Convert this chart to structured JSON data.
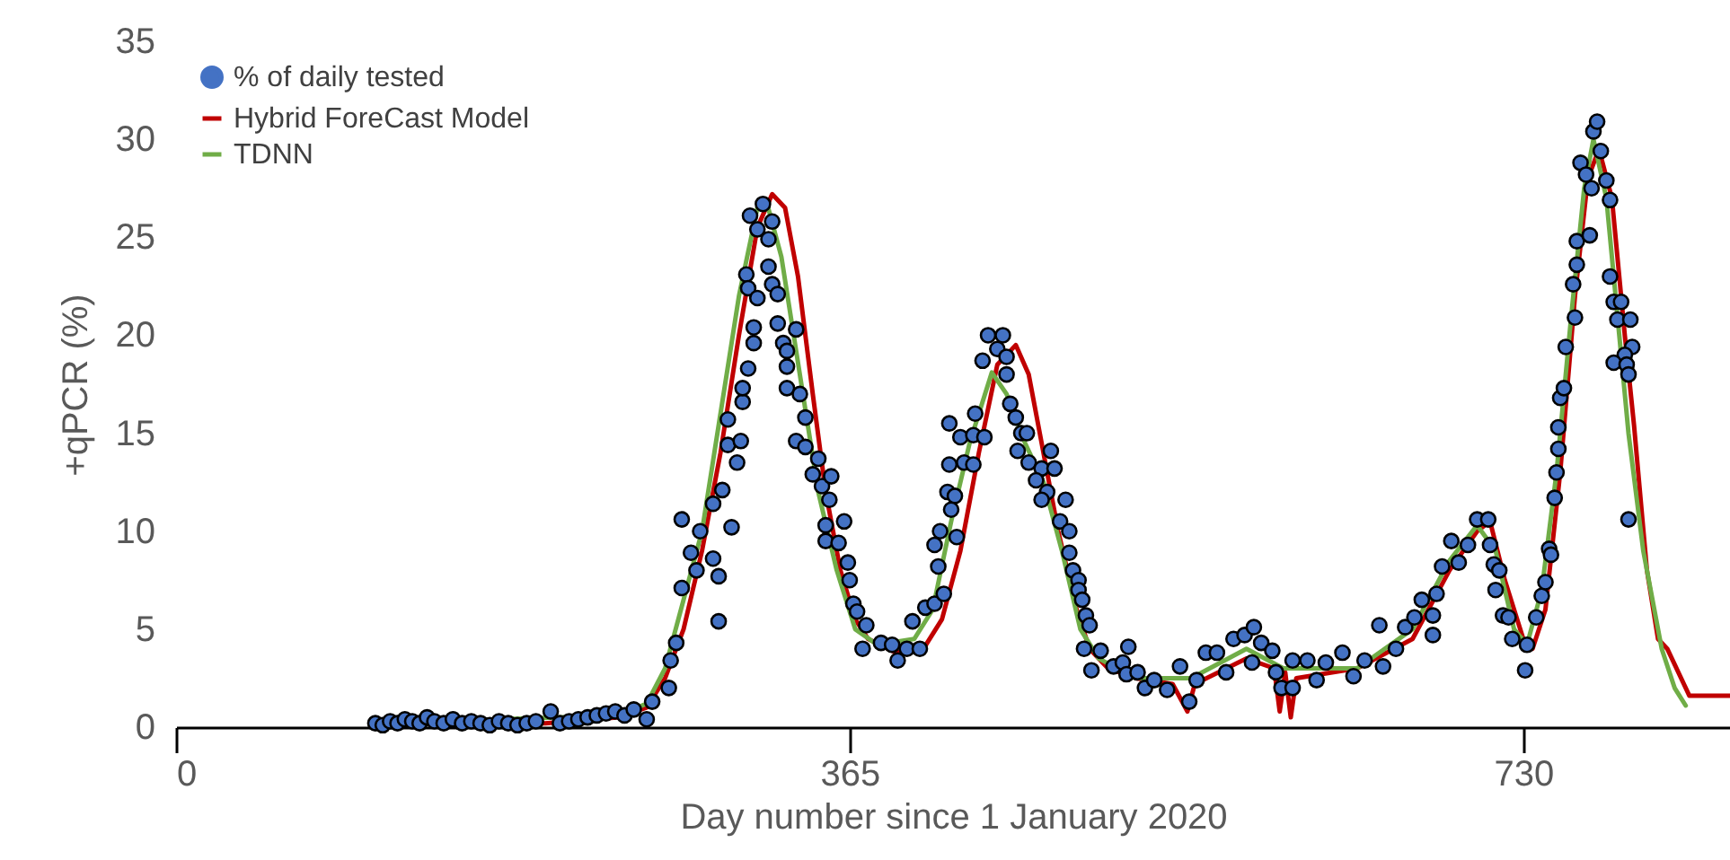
{
  "chart_data": {
    "type": "scatter",
    "xlabel": "Day number since 1 January 2020",
    "ylabel": "+qPCR (%)",
    "xlim": [
      0,
      842
    ],
    "ylim": [
      0,
      35
    ],
    "xticks": [
      0,
      365,
      730
    ],
    "yticks": [
      0,
      5,
      10,
      15,
      20,
      25,
      30,
      35
    ],
    "grid": false,
    "legend": "top left",
    "series": [
      {
        "name": "% of daily tested",
        "marker": "circle",
        "color": "#4472c4",
        "x": [
          108,
          112,
          116,
          120,
          124,
          128,
          132,
          136,
          140,
          145,
          150,
          155,
          160,
          165,
          170,
          175,
          180,
          185,
          190,
          195,
          203,
          208,
          213,
          218,
          223,
          228,
          233,
          238,
          243,
          248,
          255,
          258,
          267,
          268,
          271,
          274,
          274,
          279,
          282,
          284,
          291,
          294,
          294,
          291,
          296,
          301,
          299,
          299,
          304,
          306,
          307,
          307,
          310,
          313,
          313,
          309,
          310,
          315,
          311,
          315,
          318,
          323,
          321,
          321,
          323,
          326,
          326,
          329,
          331,
          331,
          336,
          331,
          338,
          341,
          336,
          341,
          348,
          345,
          350,
          355,
          354,
          352,
          362,
          352,
          359,
          364,
          365,
          367,
          369,
          374,
          372,
          382,
          388,
          391,
          396,
          403,
          399,
          406,
          411,
          416,
          423,
          414,
          411,
          413,
          418,
          422,
          420,
          419,
          419,
          425,
          427,
          432,
          433,
          432,
          438,
          437,
          440,
          445,
          448,
          450,
          450,
          452,
          455,
          458,
          456,
          461,
          462,
          469,
          466,
          474,
          476,
          472,
          469,
          482,
          479,
          484,
          484,
          486,
          489,
          489,
          491,
          493,
          495,
          492,
          496,
          501,
          508,
          513,
          516,
          515,
          521,
          525,
          530,
          537,
          544,
          549,
          553,
          558,
          564,
          569,
          573,
          579,
          584,
          583,
          588,
          594,
          596,
          599,
          605,
          605,
          613,
          618,
          623,
          632,
          638,
          644,
          652,
          654,
          661,
          666,
          671,
          675,
          681,
          681,
          683,
          686,
          691,
          695,
          700,
          705,
          711,
          712,
          714,
          715,
          719,
          717,
          722,
          724,
          732,
          731,
          737,
          740,
          742,
          744,
          745,
          747,
          748,
          749,
          749,
          750,
          752,
          753,
          758,
          757,
          759,
          759,
          766,
          761,
          764,
          767,
          768,
          770,
          772,
          775,
          777,
          777,
          779,
          783,
          781,
          788,
          789,
          785,
          779,
          786,
          787,
          787
        ],
        "values": [
          0.2,
          0.1,
          0.3,
          0.2,
          0.4,
          0.3,
          0.2,
          0.5,
          0.3,
          0.2,
          0.4,
          0.2,
          0.3,
          0.2,
          0.1,
          0.3,
          0.2,
          0.1,
          0.2,
          0.3,
          0.8,
          0.2,
          0.3,
          0.4,
          0.5,
          0.6,
          0.7,
          0.8,
          0.6,
          0.9,
          0.4,
          1.3,
          2.0,
          3.4,
          4.3,
          7.1,
          10.6,
          8.9,
          8.0,
          10.0,
          8.6,
          7.7,
          5.4,
          11.4,
          12.1,
          10.2,
          14.4,
          15.7,
          13.5,
          14.6,
          16.6,
          17.3,
          18.3,
          19.6,
          20.4,
          23.1,
          22.4,
          21.9,
          26.1,
          25.4,
          26.7,
          25.8,
          24.9,
          23.5,
          22.6,
          22.1,
          20.6,
          19.6,
          19.2,
          18.4,
          20.3,
          17.3,
          17.0,
          15.8,
          14.6,
          14.3,
          13.7,
          12.9,
          12.3,
          12.8,
          11.6,
          10.3,
          10.5,
          9.5,
          9.4,
          8.4,
          7.5,
          6.3,
          5.9,
          5.2,
          4.0,
          4.3,
          4.2,
          3.4,
          4.0,
          4.0,
          5.4,
          6.1,
          6.3,
          6.8,
          9.7,
          10.0,
          9.3,
          8.2,
          12.0,
          11.8,
          11.1,
          13.4,
          15.5,
          14.8,
          13.5,
          13.4,
          16.0,
          14.9,
          14.8,
          18.7,
          20.0,
          19.3,
          20.0,
          18.9,
          18.0,
          16.5,
          15.8,
          15.0,
          14.1,
          15.0,
          13.5,
          13.2,
          12.6,
          14.1,
          13.2,
          12.0,
          11.6,
          11.6,
          10.5,
          10.0,
          8.9,
          8.0,
          7.5,
          7.0,
          6.5,
          5.7,
          5.2,
          4.0,
          2.9,
          3.9,
          3.1,
          3.3,
          4.1,
          2.7,
          2.8,
          2.0,
          2.4,
          1.9,
          3.1,
          1.3,
          2.4,
          3.8,
          3.8,
          2.8,
          4.5,
          4.7,
          5.1,
          3.3,
          4.3,
          3.9,
          2.8,
          2.0,
          2.0,
          3.4,
          3.4,
          2.4,
          3.3,
          3.8,
          2.6,
          3.4,
          5.2,
          3.1,
          4.0,
          5.1,
          5.6,
          6.5,
          5.7,
          4.7,
          6.8,
          8.2,
          9.5,
          8.4,
          9.3,
          10.6,
          10.6,
          9.3,
          8.3,
          7.0,
          5.7,
          8.0,
          5.6,
          4.5,
          4.2,
          2.9,
          5.6,
          6.7,
          7.4,
          9.1,
          8.8,
          11.7,
          13.0,
          14.2,
          15.3,
          16.8,
          17.3,
          19.4,
          20.9,
          22.6,
          23.6,
          24.8,
          25.1,
          28.8,
          28.2,
          27.5,
          30.4,
          30.9,
          29.4,
          27.9,
          26.9,
          23.0,
          21.7,
          21.7,
          20.8,
          20.8,
          19.4,
          19.0,
          18.6,
          18.5,
          18.0,
          10.6
        ]
      },
      {
        "name": "Hybrid ForeCast Model",
        "type": "line",
        "marker": "none",
        "color": "#c00000",
        "x": [
          108,
          200,
          240,
          255,
          265,
          275,
          285,
          295,
          305,
          315,
          323,
          330,
          337,
          345,
          352,
          360,
          368,
          375,
          390,
          405,
          415,
          425,
          435,
          445,
          455,
          462,
          470,
          478,
          488,
          495,
          505,
          520,
          540,
          548,
          552,
          580,
          595,
          598,
          601,
          604,
          607,
          640,
          670,
          690,
          705,
          712,
          720,
          730,
          735,
          742,
          750,
          758,
          765,
          771,
          778,
          785,
          790,
          797,
          803,
          808,
          820,
          842
        ],
        "values": [
          0.2,
          0.2,
          0.5,
          1.0,
          2.5,
          5,
          9,
          14,
          20,
          25.5,
          27.2,
          26.5,
          23,
          17,
          12,
          8,
          5.5,
          4.5,
          3.8,
          4.0,
          5.5,
          9,
          14,
          18.5,
          19.5,
          18,
          14,
          10,
          6,
          4,
          3.0,
          2.5,
          2.2,
          0.8,
          2.2,
          3.5,
          3.0,
          0.8,
          2.8,
          0.5,
          2.5,
          3.0,
          4.5,
          8,
          10,
          10.5,
          7.5,
          4.5,
          4,
          6,
          13,
          22,
          28,
          29.5,
          27,
          20,
          15.4,
          8,
          4.5,
          4.0,
          1.6,
          1.6
        ]
      },
      {
        "name": "TDNN",
        "type": "line",
        "marker": "none",
        "color": "#70ad47",
        "x": [
          108,
          240,
          255,
          265,
          275,
          285,
          295,
          305,
          315,
          320,
          328,
          338,
          348,
          358,
          368,
          380,
          400,
          410,
          420,
          430,
          442,
          450,
          460,
          470,
          480,
          490,
          500,
          520,
          550,
          580,
          600,
          640,
          670,
          690,
          705,
          715,
          725,
          732,
          740,
          748,
          756,
          763,
          768,
          775,
          782,
          787,
          795,
          805,
          812,
          818
        ],
        "values": [
          0.2,
          0.6,
          1.2,
          3,
          6.5,
          10,
          16,
          22,
          26.5,
          26.8,
          24,
          18,
          12,
          8,
          5,
          4.2,
          4.5,
          6,
          10.5,
          14.5,
          18.1,
          17,
          14.5,
          12.5,
          9,
          5,
          3.5,
          2.5,
          2.5,
          4,
          3,
          3,
          5,
          8.5,
          10.3,
          9,
          5,
          4.2,
          7,
          13,
          21,
          27.5,
          30,
          27,
          20,
          15,
          9,
          4,
          2,
          1.1
        ]
      }
    ]
  }
}
